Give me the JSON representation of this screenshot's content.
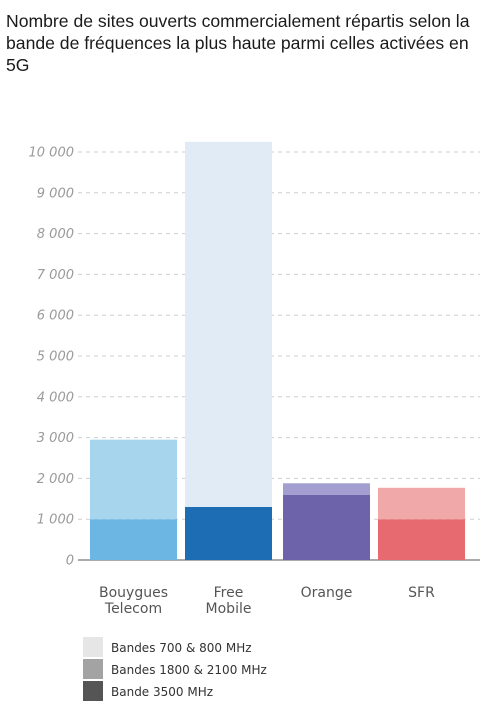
{
  "chart_data": {
    "type": "bar",
    "stacked": true,
    "title": "Nombre de sites ouverts commercialement répartis selon la bande de fréquences la plus haute parmi celles activées en 5G",
    "categories": [
      [
        "Bouygues",
        "Telecom"
      ],
      [
        "Free",
        "Mobile"
      ],
      [
        "Orange"
      ],
      [
        "SFR"
      ]
    ],
    "series": [
      {
        "name": "Bande 3500 MHz",
        "values": [
          1000,
          1300,
          1600,
          1000
        ]
      },
      {
        "name": "Bandes 1800 & 2100 MHz",
        "values": [
          0,
          0,
          280,
          0
        ]
      },
      {
        "name": "Bandes 700 & 800 MHz",
        "values": [
          1950,
          8950,
          0,
          770
        ]
      }
    ],
    "ylim": [
      0,
      10000
    ],
    "yticks": [
      0,
      1000,
      2000,
      3000,
      4000,
      5000,
      6000,
      7000,
      8000,
      9000,
      10000
    ],
    "ytick_labels": [
      "0",
      "1 000",
      "2 000",
      "3 000",
      "4 000",
      "5 000",
      "6 000",
      "7 000",
      "8 000",
      "9 000",
      "10 000"
    ],
    "grid": true,
    "legend": {
      "position": "bottom-left",
      "items": [
        {
          "label": "Bandes 700 & 800 MHz",
          "color": "#e6e6e6"
        },
        {
          "label": "Bandes 1800 & 2100 MHz",
          "color": "#a3a3a3"
        },
        {
          "label": "Bande 3500 MHz",
          "color": "#555555"
        }
      ]
    },
    "colors": {
      "Bouygues Telecom": [
        "#6bb6e2",
        "#6bb6e2",
        "#a8d5ee"
      ],
      "Free Mobile": [
        "#1c6db3",
        "#1c6db3",
        "#e1ebf5"
      ],
      "Orange": [
        "#6c63ab",
        "#a29ed0",
        "#d8d6ec"
      ],
      "SFR": [
        "#e66a70",
        "#e66a70",
        "#f0a8a8"
      ]
    }
  }
}
